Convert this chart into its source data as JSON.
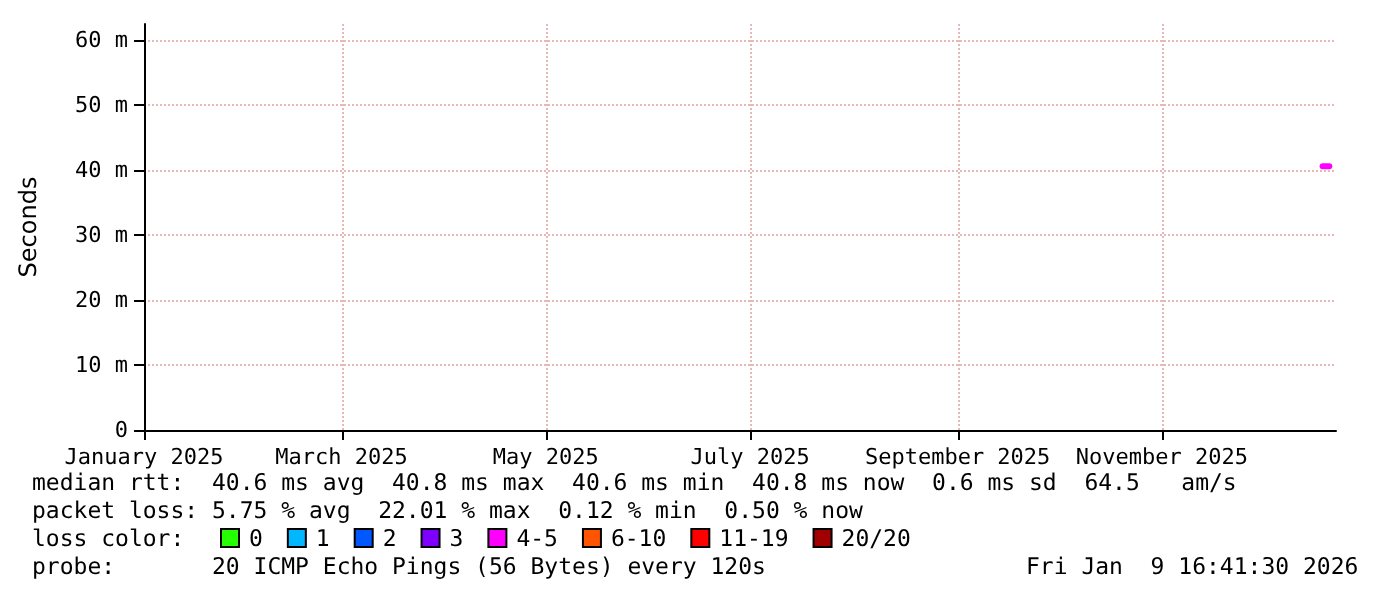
{
  "chart_data": {
    "type": "line",
    "ylabel": "Seconds",
    "legend_title": "loss color:",
    "x": [
      "2025-12-19",
      "2025-12-21"
    ],
    "xlim": [
      "2025-01-01",
      "2025-12-23"
    ],
    "xticks": [
      {
        "value": "2025-01-01",
        "label": "January 2025"
      },
      {
        "value": "2025-03-01",
        "label": "March 2025"
      },
      {
        "value": "2025-05-01",
        "label": "May 2025"
      },
      {
        "value": "2025-07-01",
        "label": "July 2025"
      },
      {
        "value": "2025-09-01",
        "label": "September 2025"
      },
      {
        "value": "2025-11-01",
        "label": "November 2025"
      }
    ],
    "ylim": [
      0,
      62.5
    ],
    "yticks": [
      0,
      {
        "value": 10,
        "label": "10 m"
      },
      {
        "value": 20,
        "label": "20 m"
      },
      {
        "value": 30,
        "label": "30 m"
      },
      {
        "value": 40,
        "label": "40 m"
      },
      {
        "value": 50,
        "label": "50 m"
      },
      {
        "value": 60,
        "label": "60 m"
      }
    ],
    "grid": true,
    "legend": "bottom left",
    "marker": "none",
    "series": [
      {
        "name": "0",
        "color": "#26ff00",
        "values": [
          null,
          null
        ]
      },
      {
        "name": "1",
        "color": "#00b8ff",
        "values": [
          null,
          null
        ]
      },
      {
        "name": "2",
        "color": "#0059ff",
        "values": [
          null,
          null
        ]
      },
      {
        "name": "3",
        "color": "#7e00ff",
        "values": [
          null,
          null
        ]
      },
      {
        "name": "4-5",
        "color": "#ff00ff",
        "values": [
          40.6,
          40.6
        ]
      },
      {
        "name": "6-10",
        "color": "#ff5500",
        "values": [
          null,
          null
        ]
      },
      {
        "name": "11-19",
        "color": "#ff0000",
        "values": [
          null,
          null
        ]
      },
      {
        "name": "20/20",
        "color": "#a10000",
        "values": [
          null,
          null
        ]
      }
    ],
    "annotations": [
      "median rtt:  40.6 ms avg  40.8 ms max  40.6 ms min  40.8 ms now  0.6 ms sd  64.5   am/s",
      "packet loss: 5.75 % avg  22.01 % max  0.12 % min  0.50 % now",
      "probe:       20 ICMP Echo Pings (56 Bytes) every 120s",
      "Fri Jan  9 16:41:30 2026"
    ]
  }
}
